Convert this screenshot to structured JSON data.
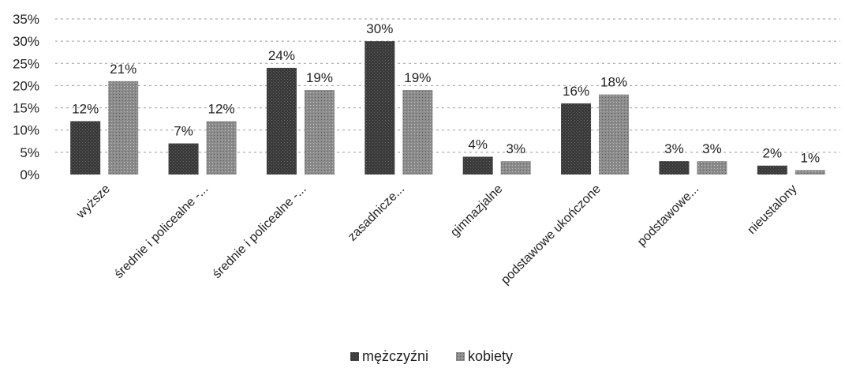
{
  "chart_data": {
    "type": "bar",
    "categories": [
      "wyższe",
      "średnie i policealne -...",
      "średnie i policealne -...",
      "zasadnicze...",
      "gimnazjalne",
      "podstawowe ukończone",
      "podstawowe...",
      "nieustalony"
    ],
    "series": [
      {
        "name": "mężczyźni",
        "values": [
          12,
          7,
          24,
          30,
          4,
          16,
          3,
          2
        ],
        "labels": [
          "12%",
          "7%",
          "24%",
          "30%",
          "4%",
          "16%",
          "3%",
          "2%"
        ]
      },
      {
        "name": "kobiety",
        "values": [
          21,
          12,
          19,
          19,
          3,
          18,
          3,
          1
        ],
        "labels": [
          "21%",
          "12%",
          "19%",
          "19%",
          "3%",
          "18%",
          "3%",
          "1%"
        ]
      }
    ],
    "yticks": [
      "0%",
      "5%",
      "10%",
      "15%",
      "20%",
      "25%",
      "30%",
      "35%"
    ],
    "ytick_values": [
      0,
      5,
      10,
      15,
      20,
      25,
      30,
      35
    ],
    "ylim": [
      0,
      35
    ],
    "grid": true,
    "legend": "bottom-center",
    "colors": {
      "mężczyźni": "#3c3c3c",
      "kobiety": "#8a8a8a"
    }
  }
}
